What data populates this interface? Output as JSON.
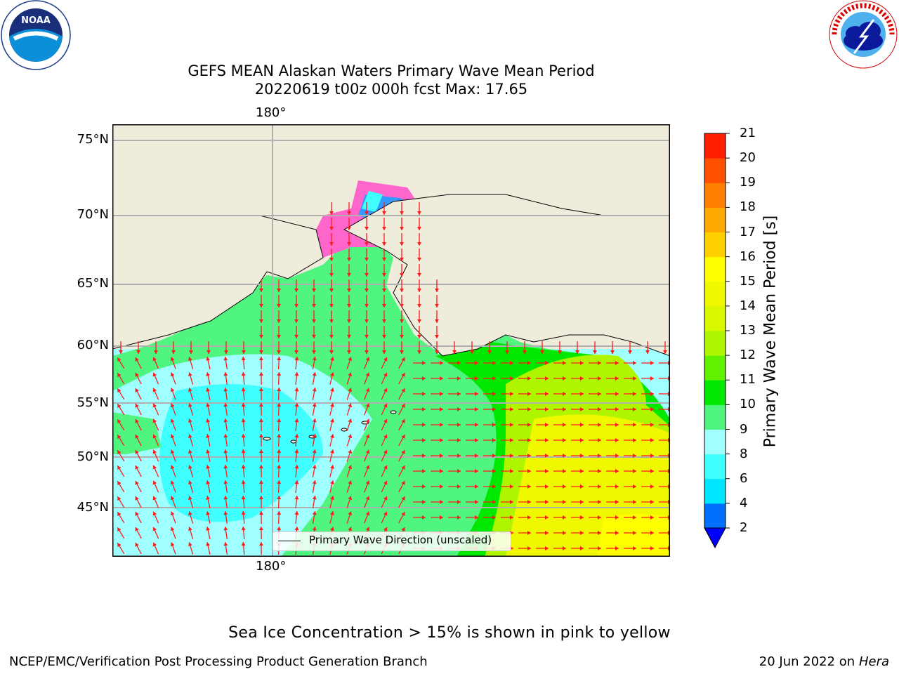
{
  "title": {
    "line1": "GEFS MEAN Alaskan Waters Primary Wave Mean Period",
    "line2": "20220619 t00z 000h fcst   Max: 17.65"
  },
  "logos": {
    "left": {
      "name": "noaa-logo",
      "text": "NOAA",
      "ring_text": "NATIONAL OCEANIC AND ATMOSPHERIC ADMINISTRATION · U.S. DEPARTMENT OF COMMERCE"
    },
    "right": {
      "name": "nws-logo",
      "ring_text": "NATIONAL WEATHER SERVICE"
    }
  },
  "map": {
    "lat_labels": [
      "75°N",
      "70°N",
      "65°N",
      "60°N",
      "55°N",
      "50°N",
      "45°N"
    ],
    "lon_label_top": "180°",
    "lon_label_bottom": "180°",
    "legend": "Primary Wave Direction (unscaled)",
    "colors": {
      "land": "#efecdc",
      "gridline": "#b0b0b0",
      "arrow": "#ff1a1a"
    }
  },
  "colorbar": {
    "label": "Primary Wave Mean Period [s]",
    "ticks": [
      "2",
      "4",
      "6",
      "8",
      "9",
      "10",
      "11",
      "12",
      "13",
      "14",
      "15",
      "16",
      "17",
      "18",
      "19",
      "20",
      "21"
    ],
    "colors": [
      "#0070ff",
      "#00e6ff",
      "#40ffff",
      "#a0ffff",
      "#50f580",
      "#00e800",
      "#60f000",
      "#b0f500",
      "#d8f800",
      "#f0f800",
      "#ffff00",
      "#ffd000",
      "#ffa800",
      "#ff8000",
      "#ff5000",
      "#ff2000"
    ],
    "under_color": "#0000ff"
  },
  "notes": {
    "sea_ice": "Sea Ice Concentration > 15% is shown in pink to yellow"
  },
  "footer": {
    "left": "NCEP/EMC/Verification Post Processing Product Generation Branch",
    "right_date": "20 Jun 2022 on",
    "right_host": "Hera"
  }
}
